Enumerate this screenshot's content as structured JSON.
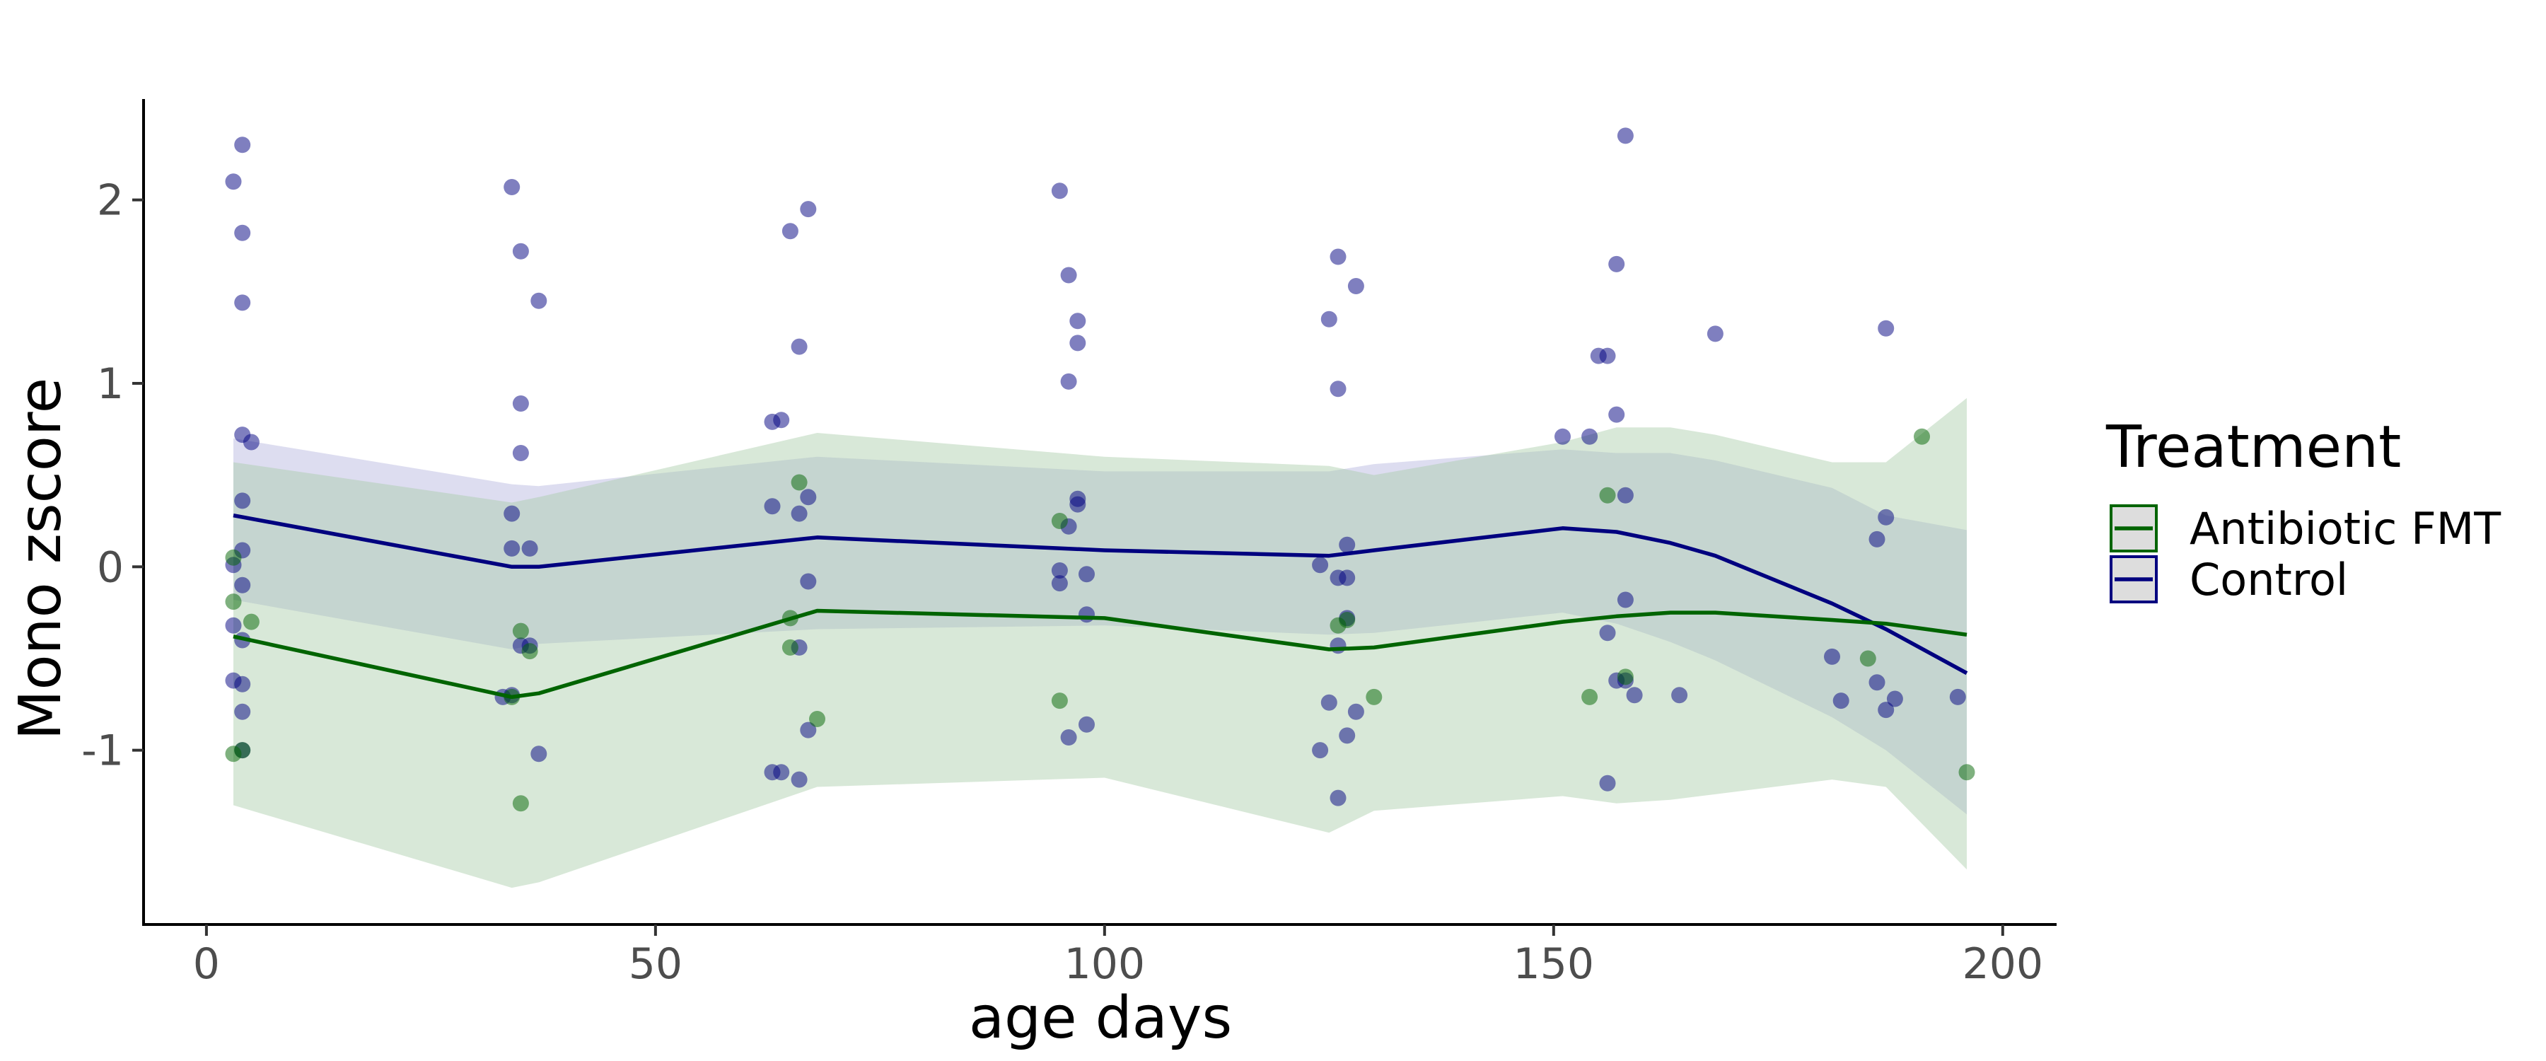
{
  "chart_data": {
    "type": "scatter",
    "title": "",
    "xlabel": "age days",
    "ylabel": "Mono zscore",
    "xlim": [
      -7,
      206
    ],
    "ylim": [
      -1.95,
      2.55
    ],
    "x_ticks": [
      0,
      50,
      100,
      150,
      200
    ],
    "y_ticks": [
      -1,
      0,
      1,
      2
    ],
    "grid": false,
    "legend": {
      "title": "Treatment",
      "position": "right",
      "entries": [
        "Antibiotic FMT",
        "Control"
      ]
    },
    "series": [
      {
        "name": "Control",
        "color": "#00007f",
        "points": [
          [
            3,
            2.1
          ],
          [
            4,
            2.3
          ],
          [
            4,
            1.82
          ],
          [
            4,
            1.44
          ],
          [
            4,
            0.72
          ],
          [
            5,
            0.68
          ],
          [
            4,
            0.36
          ],
          [
            4,
            0.09
          ],
          [
            3,
            0.01
          ],
          [
            4,
            -0.1
          ],
          [
            3,
            -0.32
          ],
          [
            4,
            -0.4
          ],
          [
            3,
            -0.62
          ],
          [
            4,
            -0.64
          ],
          [
            4,
            -0.79
          ],
          [
            4,
            -1.0
          ],
          [
            34,
            2.07
          ],
          [
            35,
            1.72
          ],
          [
            37,
            1.45
          ],
          [
            35,
            0.89
          ],
          [
            35,
            0.62
          ],
          [
            34,
            0.29
          ],
          [
            34,
            0.1
          ],
          [
            36,
            0.1
          ],
          [
            35,
            -0.43
          ],
          [
            36,
            -0.43
          ],
          [
            33,
            -0.71
          ],
          [
            34,
            -0.7
          ],
          [
            37,
            -1.02
          ],
          [
            65,
            1.83
          ],
          [
            67,
            1.95
          ],
          [
            66,
            1.2
          ],
          [
            63,
            0.79
          ],
          [
            64,
            0.8
          ],
          [
            67,
            0.38
          ],
          [
            63,
            0.33
          ],
          [
            66,
            0.29
          ],
          [
            67,
            -0.08
          ],
          [
            66,
            -0.44
          ],
          [
            67,
            -0.89
          ],
          [
            63,
            -1.12
          ],
          [
            64,
            -1.12
          ],
          [
            66,
            -1.16
          ],
          [
            95,
            2.05
          ],
          [
            96,
            1.59
          ],
          [
            97,
            1.34
          ],
          [
            97,
            1.22
          ],
          [
            96,
            1.01
          ],
          [
            97,
            0.37
          ],
          [
            97,
            0.34
          ],
          [
            96,
            0.22
          ],
          [
            95,
            -0.02
          ],
          [
            98,
            -0.04
          ],
          [
            95,
            -0.09
          ],
          [
            98,
            -0.26
          ],
          [
            98,
            -0.86
          ],
          [
            96,
            -0.93
          ],
          [
            126,
            1.69
          ],
          [
            128,
            1.53
          ],
          [
            125,
            1.35
          ],
          [
            126,
            0.97
          ],
          [
            127,
            0.12
          ],
          [
            124,
            0.01
          ],
          [
            126,
            -0.06
          ],
          [
            127,
            -0.06
          ],
          [
            127,
            -0.28
          ],
          [
            126,
            -0.43
          ],
          [
            125,
            -0.74
          ],
          [
            128,
            -0.79
          ],
          [
            127,
            -0.92
          ],
          [
            124,
            -1.0
          ],
          [
            126,
            -1.26
          ],
          [
            158,
            2.35
          ],
          [
            157,
            1.65
          ],
          [
            155,
            1.15
          ],
          [
            156,
            1.15
          ],
          [
            157,
            0.83
          ],
          [
            151,
            0.71
          ],
          [
            154,
            0.71
          ],
          [
            158,
            0.39
          ],
          [
            158,
            -0.18
          ],
          [
            156,
            -0.36
          ],
          [
            157,
            -0.62
          ],
          [
            158,
            -0.62
          ],
          [
            159,
            -0.7
          ],
          [
            164,
            -0.7
          ],
          [
            156,
            -1.18
          ],
          [
            168,
            1.27
          ],
          [
            187,
            1.3
          ],
          [
            187,
            0.27
          ],
          [
            186,
            0.15
          ],
          [
            181,
            -0.49
          ],
          [
            182,
            -0.73
          ],
          [
            186,
            -0.63
          ],
          [
            187,
            -0.78
          ],
          [
            188,
            -0.72
          ],
          [
            195,
            -0.71
          ]
        ]
      },
      {
        "name": "Antibiotic FMT",
        "color": "#006400",
        "points": [
          [
            3,
            0.05
          ],
          [
            3,
            -0.19
          ],
          [
            5,
            -0.3
          ],
          [
            3,
            -1.02
          ],
          [
            4,
            -1.0
          ],
          [
            35,
            -0.35
          ],
          [
            36,
            -0.46
          ],
          [
            34,
            -0.71
          ],
          [
            35,
            -1.29
          ],
          [
            66,
            0.46
          ],
          [
            65,
            -0.28
          ],
          [
            65,
            -0.44
          ],
          [
            68,
            -0.83
          ],
          [
            95,
            0.25
          ],
          [
            95,
            -0.73
          ],
          [
            127,
            -0.29
          ],
          [
            126,
            -0.32
          ],
          [
            130,
            -0.71
          ],
          [
            156,
            0.39
          ],
          [
            154,
            -0.71
          ],
          [
            158,
            -0.6
          ],
          [
            185,
            -0.5
          ],
          [
            191,
            0.71
          ],
          [
            196,
            -1.12
          ]
        ]
      }
    ],
    "smooth_lines": [
      {
        "name": "Control",
        "color": "#00007f",
        "x": [
          3,
          34,
          37,
          68,
          100,
          125,
          130,
          151,
          157,
          163,
          168,
          181,
          187,
          196
        ],
        "y": [
          0.28,
          0.0,
          0.0,
          0.16,
          0.09,
          0.06,
          0.09,
          0.21,
          0.19,
          0.13,
          0.06,
          -0.2,
          -0.34,
          -0.58
        ],
        "lower": [
          -0.18,
          -0.45,
          -0.42,
          -0.34,
          -0.32,
          -0.37,
          -0.36,
          -0.25,
          -0.31,
          -0.41,
          -0.51,
          -0.82,
          -1.0,
          -1.35
        ],
        "upper": [
          0.7,
          0.45,
          0.44,
          0.6,
          0.52,
          0.52,
          0.56,
          0.64,
          0.62,
          0.62,
          0.58,
          0.43,
          0.28,
          0.2
        ]
      },
      {
        "name": "Antibiotic FMT",
        "color": "#006400",
        "x": [
          3,
          34,
          37,
          68,
          100,
          125,
          130,
          151,
          157,
          163,
          168,
          181,
          187,
          196
        ],
        "y": [
          -0.38,
          -0.71,
          -0.69,
          -0.24,
          -0.28,
          -0.45,
          -0.44,
          -0.3,
          -0.27,
          -0.25,
          -0.25,
          -0.29,
          -0.31,
          -0.37
        ],
        "lower": [
          -1.3,
          -1.75,
          -1.72,
          -1.2,
          -1.15,
          -1.45,
          -1.33,
          -1.25,
          -1.29,
          -1.27,
          -1.24,
          -1.16,
          -1.2,
          -1.65
        ],
        "upper": [
          0.57,
          0.35,
          0.38,
          0.73,
          0.6,
          0.55,
          0.5,
          0.68,
          0.76,
          0.76,
          0.72,
          0.57,
          0.57,
          0.92
        ]
      }
    ]
  }
}
